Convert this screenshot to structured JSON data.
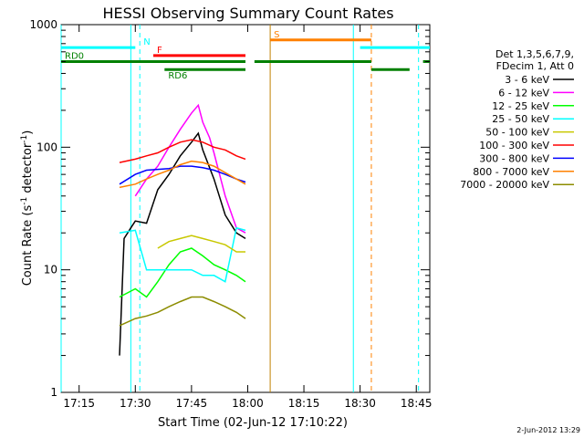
{
  "chart_data": {
    "type": "line",
    "title": "HESSI Observing Summary Count Rates",
    "xlabel": "Start Time (02-Jun-12 17:10:22)",
    "ylabel": "Count Rate (s^-1 detector^-1)",
    "ylabel_parts": {
      "main": "Count Rate (s",
      "sup1": "-1",
      "mid": " detector",
      "sup2": "-1",
      "end": ")"
    },
    "y_scale": "log",
    "ylim": [
      1,
      1000
    ],
    "xlim_minutes": [
      17.17,
      18.81
    ],
    "x_ticks": [
      "17:15",
      "17:30",
      "17:45",
      "18:00",
      "18:15",
      "18:30",
      "18:45"
    ],
    "x_tick_values": [
      17.25,
      17.5,
      17.75,
      18.0,
      18.25,
      18.5,
      18.75
    ],
    "y_ticks": [
      "1",
      "10",
      "100",
      "1000"
    ],
    "y_tick_values": [
      1,
      10,
      100,
      1000
    ],
    "legend_header": [
      "Det 1,3,5,6,7,9,",
      "FDecim 1, Att 0"
    ],
    "legend_position": "right",
    "series": [
      {
        "name": "3 - 6 keV",
        "color": "#000000",
        "x": [
          17.43,
          17.45,
          17.48,
          17.5,
          17.55,
          17.6,
          17.65,
          17.7,
          17.75,
          17.78,
          17.8,
          17.85,
          17.9,
          17.95,
          17.99
        ],
        "y": [
          2,
          18,
          22,
          25,
          24,
          45,
          60,
          85,
          110,
          130,
          95,
          55,
          28,
          20,
          18
        ]
      },
      {
        "name": "6 - 12 keV",
        "color": "#ff00ff",
        "x": [
          17.5,
          17.55,
          17.6,
          17.65,
          17.7,
          17.75,
          17.78,
          17.8,
          17.83,
          17.85,
          17.9,
          17.95,
          17.99
        ],
        "y": [
          40,
          55,
          70,
          100,
          140,
          190,
          220,
          160,
          120,
          90,
          40,
          22,
          20
        ]
      },
      {
        "name": "12 - 25 keV",
        "color": "#00ff00",
        "x": [
          17.43,
          17.5,
          17.55,
          17.6,
          17.65,
          17.7,
          17.75,
          17.8,
          17.85,
          17.9,
          17.95,
          17.99
        ],
        "y": [
          6,
          7,
          6,
          8,
          11,
          14,
          15,
          13,
          11,
          10,
          9,
          8
        ]
      },
      {
        "name": "25 - 50 keV",
        "color": "#00ffff",
        "x": [
          17.43,
          17.5,
          17.55,
          17.6,
          17.65,
          17.7,
          17.75,
          17.8,
          17.85,
          17.9,
          17.95,
          17.99
        ],
        "y": [
          20,
          21,
          10,
          10,
          10,
          10,
          10,
          9,
          9,
          8,
          22,
          21
        ]
      },
      {
        "name": "50 - 100 keV",
        "color": "#c8c800",
        "x": [
          17.6,
          17.65,
          17.7,
          17.75,
          17.8,
          17.85,
          17.9,
          17.95,
          17.99
        ],
        "y": [
          15,
          17,
          18,
          19,
          18,
          17,
          16,
          14,
          14
        ]
      },
      {
        "name": "100 - 300 keV",
        "color": "#ff0000",
        "x": [
          17.43,
          17.5,
          17.55,
          17.6,
          17.65,
          17.7,
          17.75,
          17.8,
          17.85,
          17.9,
          17.95,
          17.99
        ],
        "y": [
          75,
          80,
          85,
          90,
          100,
          110,
          115,
          110,
          100,
          95,
          85,
          80
        ]
      },
      {
        "name": "300 - 800 keV",
        "color": "#0000ff",
        "x": [
          17.43,
          17.5,
          17.55,
          17.6,
          17.65,
          17.7,
          17.75,
          17.8,
          17.85,
          17.9,
          17.95,
          17.99
        ],
        "y": [
          50,
          60,
          65,
          66,
          67,
          70,
          70,
          68,
          65,
          60,
          55,
          52
        ]
      },
      {
        "name": "800 - 7000 keV",
        "color": "#ff8000",
        "x": [
          17.43,
          17.5,
          17.55,
          17.6,
          17.65,
          17.7,
          17.75,
          17.8,
          17.85,
          17.9,
          17.95,
          17.99
        ],
        "y": [
          47,
          50,
          55,
          60,
          65,
          72,
          77,
          75,
          70,
          62,
          55,
          50
        ]
      },
      {
        "name": "7000 - 20000 keV",
        "color": "#8c8c00",
        "x": [
          17.43,
          17.5,
          17.55,
          17.6,
          17.65,
          17.7,
          17.75,
          17.8,
          17.85,
          17.9,
          17.95,
          17.99
        ],
        "y": [
          3.5,
          4,
          4.2,
          4.5,
          5,
          5.5,
          6,
          6,
          5.5,
          5,
          4.5,
          4
        ]
      }
    ],
    "flags": [
      {
        "label": "N",
        "color": "#00ffff",
        "level": 650,
        "segments": [
          [
            17.17,
            17.5
          ],
          [
            18.5,
            18.81
          ]
        ]
      },
      {
        "label": "S",
        "color": "#ff8000",
        "level": 750,
        "segments": [
          [
            18.1,
            18.55
          ]
        ]
      },
      {
        "label": "F",
        "color": "#ff0000",
        "level": 560,
        "segments": [
          [
            17.58,
            17.99
          ]
        ]
      },
      {
        "label": "RD0",
        "color": "#008000",
        "level": 500,
        "segments": [
          [
            17.17,
            17.99
          ],
          [
            18.03,
            18.55
          ],
          [
            18.78,
            18.81
          ]
        ]
      },
      {
        "label": "RD6",
        "color": "#008000",
        "level": 430,
        "segments": [
          [
            17.63,
            17.99
          ],
          [
            18.55,
            18.72
          ]
        ]
      }
    ],
    "vlines": [
      {
        "x": 17.17,
        "color": "#00ffff",
        "style": "solid"
      },
      {
        "x": 17.48,
        "color": "#00ffff",
        "style": "solid"
      },
      {
        "x": 17.52,
        "color": "#00ffff",
        "style": "dashed"
      },
      {
        "x": 18.1,
        "color": "#c08000",
        "style": "solid"
      },
      {
        "x": 18.47,
        "color": "#00ffff",
        "style": "solid"
      },
      {
        "x": 18.55,
        "color": "#ff8000",
        "style": "dashed"
      },
      {
        "x": 18.76,
        "color": "#00ffff",
        "style": "dashed"
      }
    ],
    "grid": false
  },
  "footer": {
    "date_stamp": "2-Jun-2012 13:29"
  }
}
